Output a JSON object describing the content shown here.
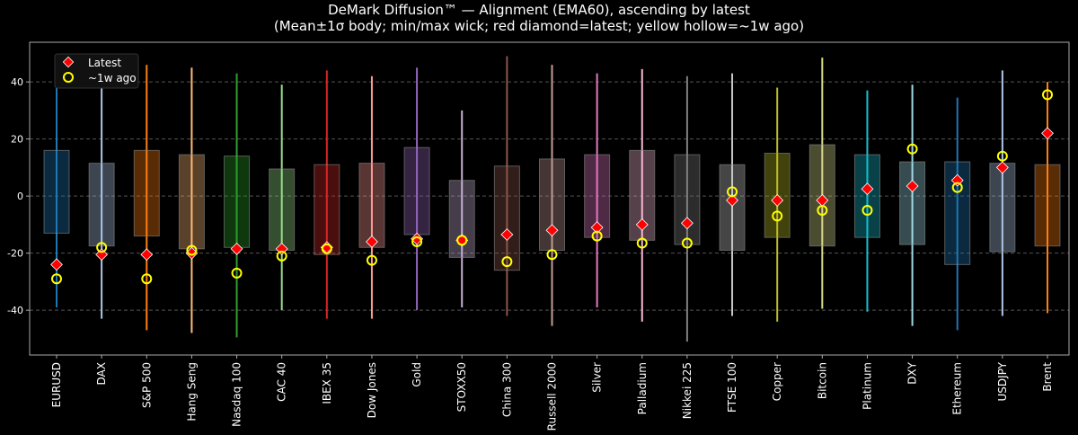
{
  "chart_data": {
    "type": "box",
    "title": "DeMark Diffusion™ — Alignment (EMA60), ascending by latest",
    "subtitle": "(Mean±1σ body; min/max wick; red diamond=latest; yellow hollow=~1w ago)",
    "xlabel": "",
    "ylabel": "",
    "ylim": [
      -55.7,
      53.9
    ],
    "yticks": [
      -40,
      -20,
      0,
      20,
      40
    ],
    "grid": "y dashed",
    "legend": {
      "placement": "top-left",
      "entries": [
        "Latest",
        "~1w ago"
      ]
    },
    "marker_colors": {
      "latest": "#ff0000",
      "prior": "#ffff00"
    },
    "categories": [
      "EURUSD",
      "DAX",
      "S&P 500",
      "Hang Seng",
      "Nasdaq 100",
      "CAC 40",
      "IBEX 35",
      "Dow Jones",
      "Gold",
      "STOXX50",
      "China 300",
      "Russell 2000",
      "Silver",
      "Palladium",
      "Nikkei 225",
      "FTSE 100",
      "Copper",
      "Bitcoin",
      "Platinum",
      "DXY",
      "Ethereum",
      "USDJPY",
      "Brent"
    ],
    "colors": [
      "#1f77b4",
      "#aec7e8",
      "#ff7f0e",
      "#ffbb78",
      "#2ca02c",
      "#98df8a",
      "#d62728",
      "#ff9896",
      "#9467bd",
      "#c5b0d5",
      "#8c564b",
      "#c49c94",
      "#e377c2",
      "#f7b6d2",
      "#7f7f7f",
      "#c7c7c7",
      "#bcbd22",
      "#dbdb8d",
      "#17becf",
      "#9edae5",
      "#1f77b4",
      "#aec7e8",
      "#ff7f0e"
    ],
    "max": [
      45,
      45,
      46,
      45,
      43,
      39,
      44,
      42,
      45,
      30,
      49,
      46,
      43,
      44.5,
      42,
      43,
      38,
      48.5,
      37,
      39,
      34.5,
      44,
      40
    ],
    "min": [
      -39,
      -43,
      -47,
      -48,
      -49.5,
      -40,
      -43,
      -43,
      -40,
      -39,
      -42,
      -45.5,
      -39,
      -44,
      -51,
      -42,
      -44,
      -39.5,
      -40.5,
      -45.5,
      -47,
      -42,
      -41
    ],
    "body_top": [
      16,
      11.5,
      16,
      14.5,
      14,
      9.5,
      11,
      11.5,
      17,
      5.5,
      10.5,
      13,
      14.5,
      16,
      14.5,
      11,
      15,
      18,
      14.5,
      12,
      12,
      11.5,
      11
    ],
    "body_bottom": [
      -13,
      -17.5,
      -14,
      -18.5,
      -18,
      -19,
      -20.5,
      -18,
      -13.5,
      -21.5,
      -26,
      -19,
      -14.5,
      -15.5,
      -17,
      -19,
      -14.5,
      -17.5,
      -14.5,
      -17,
      -24,
      -19.5,
      -17.5
    ],
    "latest": [
      -24,
      -20.5,
      -20.5,
      -20,
      -18.5,
      -18.5,
      -18,
      -16,
      -15,
      -15.5,
      -13.5,
      -12,
      -11,
      -10,
      -9.5,
      -1.5,
      -1.5,
      -1.5,
      2.5,
      3.5,
      5.5,
      10,
      22
    ],
    "prior": [
      -29,
      -18,
      -29,
      -19,
      -27,
      -21,
      -18.5,
      -22.5,
      -16,
      -15.5,
      -23,
      -20.5,
      -14,
      -16.5,
      -16.5,
      1.5,
      -7,
      -5,
      -5,
      16.5,
      3,
      14,
      35.5
    ]
  }
}
